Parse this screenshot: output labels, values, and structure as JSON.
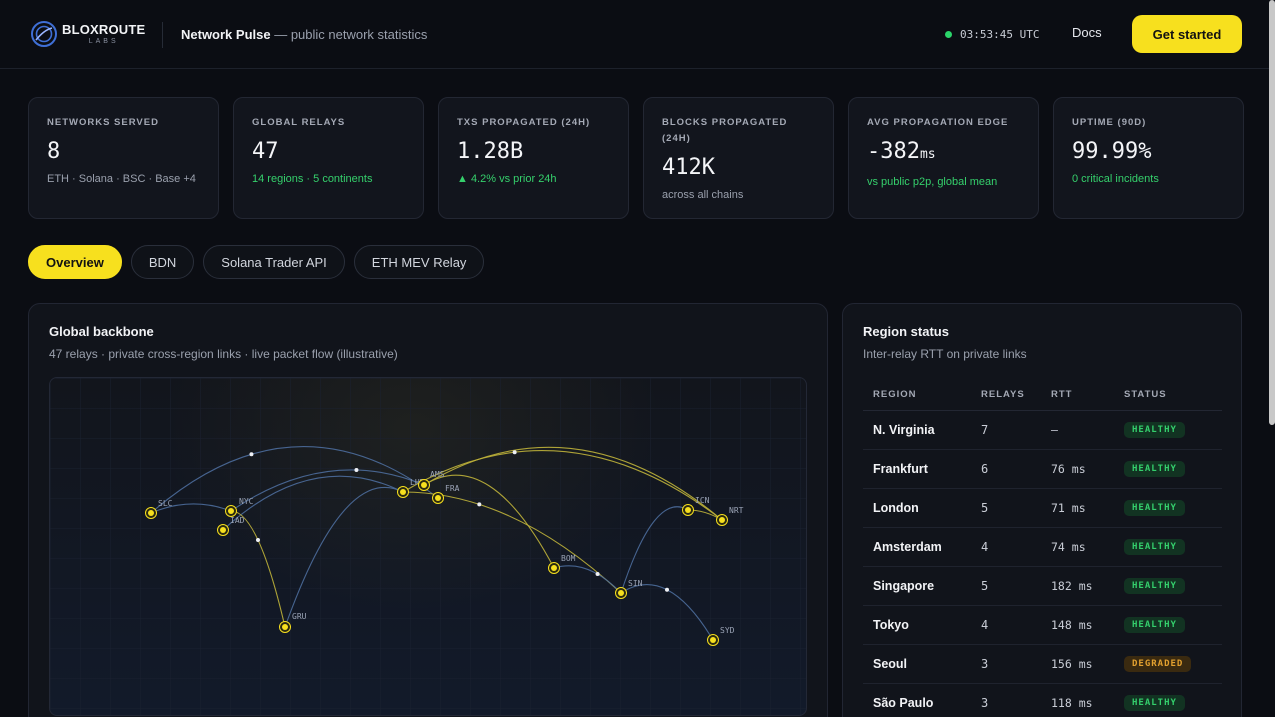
{
  "header": {
    "logo_name": "BLOXROUTE",
    "logo_sub": "LABS",
    "title_bold": "Network Pulse",
    "title_rest": " — public network statistics",
    "clock": "03:53:45 UTC",
    "docs_label": "Docs",
    "cta_label": "Get started"
  },
  "kpis": [
    {
      "label": "NETWORKS SERVED",
      "value": "8",
      "unit": "",
      "sub": "ETH · Solana · BSC · Base +4",
      "sub_color": "muted"
    },
    {
      "label": "GLOBAL RELAYS",
      "value": "47",
      "unit": "",
      "sub": "14 regions · 5 continents",
      "sub_color": "green"
    },
    {
      "label": "TXS PROPAGATED (24H)",
      "value": "1.28B",
      "unit": "",
      "sub": "▲ 4.2% vs prior 24h",
      "sub_color": "green"
    },
    {
      "label": "BLOCKS PROPAGATED (24H)",
      "value": "412K",
      "unit": "",
      "sub": "across all chains",
      "sub_color": "muted"
    },
    {
      "label": "AVG PROPAGATION EDGE",
      "value": "-382",
      "unit": "ms",
      "sub": "vs public p2p, global mean",
      "sub_color": "green"
    },
    {
      "label": "UPTIME (90D)",
      "value": "99.99%",
      "unit": "",
      "sub": "0 critical incidents",
      "sub_color": "green"
    }
  ],
  "tabs": [
    "Overview",
    "BDN",
    "Solana Trader API",
    "ETH MEV Relay"
  ],
  "active_tab": "Overview",
  "backbone": {
    "title": "Global backbone",
    "subtitle": "47 relays · private cross-region links · live packet flow (illustrative)",
    "nodes": [
      "SLC",
      "NYC",
      "IAD",
      "GRU",
      "LHR",
      "AMS",
      "FRA",
      "BOM",
      "SIN",
      "ICN",
      "NRT",
      "SYD"
    ]
  },
  "region_status": {
    "title": "Region status",
    "subtitle": "Inter-relay RTT on private links",
    "columns": [
      "REGION",
      "RELAYS",
      "RTT",
      "STATUS"
    ],
    "rows": [
      {
        "region": "N. Virginia",
        "relays": "7",
        "rtt": "—",
        "status": "HEALTHY"
      },
      {
        "region": "Frankfurt",
        "relays": "6",
        "rtt": "76 ms",
        "status": "HEALTHY"
      },
      {
        "region": "London",
        "relays": "5",
        "rtt": "71 ms",
        "status": "HEALTHY"
      },
      {
        "region": "Amsterdam",
        "relays": "4",
        "rtt": "74 ms",
        "status": "HEALTHY"
      },
      {
        "region": "Singapore",
        "relays": "5",
        "rtt": "182 ms",
        "status": "HEALTHY"
      },
      {
        "region": "Tokyo",
        "relays": "4",
        "rtt": "148 ms",
        "status": "HEALTHY"
      },
      {
        "region": "Seoul",
        "relays": "3",
        "rtt": "156 ms",
        "status": "DEGRADED"
      },
      {
        "region": "São Paulo",
        "relays": "3",
        "rtt": "118 ms",
        "status": "HEALTHY"
      }
    ]
  },
  "colors": {
    "accent": "#f7e01e",
    "healthy": "#34cf6c",
    "degraded": "#e3a12f",
    "link_blue": "#4d6d9c",
    "link_yellow": "#bfb23a"
  }
}
